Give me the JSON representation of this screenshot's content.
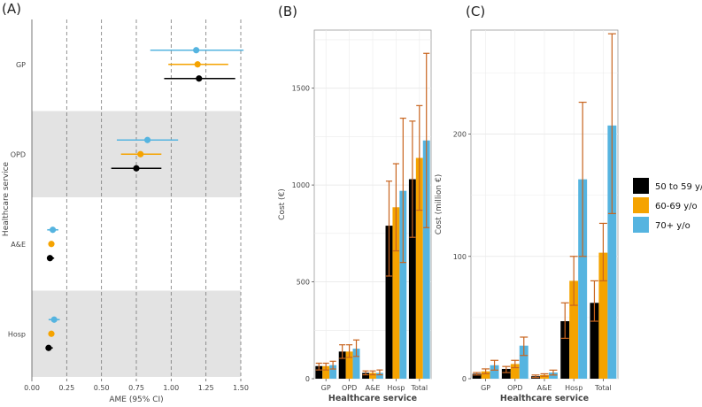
{
  "colors": {
    "s50": "#000000",
    "s60": "#f5a300",
    "s70": "#55b4e0",
    "err": "#c8641e",
    "band": "#e3e3e3",
    "grid": "#ebebeb"
  },
  "legend": [
    "50 to 59 y/o",
    "60-69 y/o",
    "70+ y/o"
  ],
  "chart_data": [
    {
      "panel": "(A)",
      "type": "scatter",
      "xlabel": "AME (95% CI)",
      "ylabel": "Healthcare service",
      "xlim": [
        0,
        1.5
      ],
      "xticks": [
        "0.00",
        "0.25",
        "0.50",
        "0.75",
        "1.00",
        "1.25",
        "1.50"
      ],
      "categories": [
        "GP",
        "OPD",
        "A&E",
        "Hosp"
      ],
      "shaded": [
        "OPD",
        "Hosp"
      ],
      "series": [
        {
          "name": "70+ y/o",
          "points": [
            {
              "est": 1.18,
              "lo": 0.85,
              "hi": 1.52
            },
            {
              "est": 0.83,
              "lo": 0.61,
              "hi": 1.05
            },
            {
              "est": 0.15,
              "lo": 0.11,
              "hi": 0.19
            },
            {
              "est": 0.16,
              "lo": 0.12,
              "hi": 0.2
            }
          ]
        },
        {
          "name": "60-69 y/o",
          "points": [
            {
              "est": 1.19,
              "lo": 0.98,
              "hi": 1.41
            },
            {
              "est": 0.78,
              "lo": 0.64,
              "hi": 0.93
            },
            {
              "est": 0.14,
              "lo": 0.12,
              "hi": 0.16
            },
            {
              "est": 0.14,
              "lo": 0.12,
              "hi": 0.16
            }
          ]
        },
        {
          "name": "50 to 59 y/o",
          "points": [
            {
              "est": 1.2,
              "lo": 0.95,
              "hi": 1.46
            },
            {
              "est": 0.75,
              "lo": 0.57,
              "hi": 0.93
            },
            {
              "est": 0.13,
              "lo": 0.11,
              "hi": 0.16
            },
            {
              "est": 0.12,
              "lo": 0.1,
              "hi": 0.15
            }
          ]
        }
      ]
    },
    {
      "panel": "(B)",
      "type": "bar",
      "xlabel": "Healthcare service",
      "ylabel": "Cost (€)",
      "ylim": [
        0,
        1800
      ],
      "yticks": [
        0,
        500,
        1000,
        1500
      ],
      "categories": [
        "GP",
        "OPD",
        "A&E",
        "Hosp",
        "Total"
      ],
      "series": [
        {
          "name": "50 to 59 y/o",
          "values": [
            65,
            140,
            30,
            790,
            1030
          ],
          "lo": [
            45,
            105,
            20,
            530,
            730
          ],
          "hi": [
            80,
            175,
            40,
            1020,
            1330
          ]
        },
        {
          "name": "60-69 y/o",
          "values": [
            65,
            140,
            30,
            885,
            1140
          ],
          "lo": [
            45,
            110,
            20,
            660,
            870
          ],
          "hi": [
            80,
            175,
            40,
            1110,
            1410
          ]
        },
        {
          "name": "70+ y/o",
          "values": [
            70,
            155,
            30,
            970,
            1230
          ],
          "lo": [
            50,
            115,
            20,
            600,
            780
          ],
          "hi": [
            90,
            200,
            45,
            1345,
            1680
          ]
        }
      ]
    },
    {
      "panel": "(C)",
      "type": "bar",
      "xlabel": "Healthcare service",
      "ylabel": "Cost (million €)",
      "ylim": [
        0,
        285
      ],
      "yticks": [
        0,
        100,
        200
      ],
      "categories": [
        "GP",
        "OPD",
        "A&E",
        "Hosp",
        "Total"
      ],
      "series": [
        {
          "name": "50 to 59 y/o",
          "values": [
            4,
            8,
            2,
            47,
            62
          ],
          "lo": [
            3,
            5,
            1,
            33,
            47
          ],
          "hi": [
            5,
            10,
            3,
            62,
            80
          ]
        },
        {
          "name": "60-69 y/o",
          "values": [
            6,
            12,
            3,
            80,
            103
          ],
          "lo": [
            4,
            9,
            2,
            60,
            80
          ],
          "hi": [
            8,
            15,
            4,
            100,
            127
          ]
        },
        {
          "name": "70+ y/o",
          "values": [
            11,
            27,
            5,
            163,
            207
          ],
          "lo": [
            7,
            19,
            3,
            100,
            135
          ],
          "hi": [
            15,
            34,
            7,
            226,
            282
          ]
        }
      ]
    }
  ]
}
